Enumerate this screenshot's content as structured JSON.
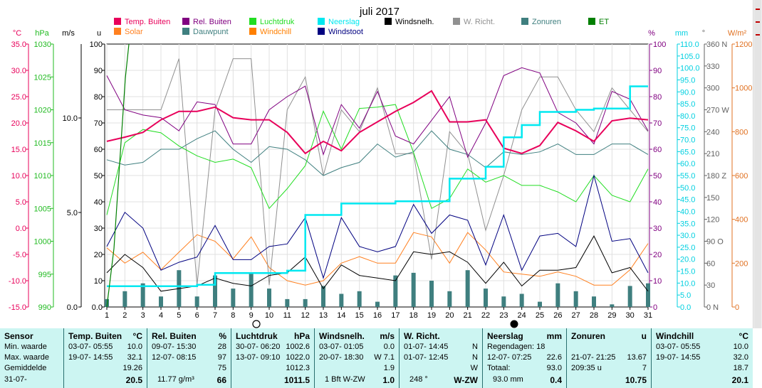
{
  "chart_data": {
    "type": "line",
    "title": "juli 2017",
    "x_ticks": [
      1,
      2,
      3,
      4,
      5,
      6,
      7,
      8,
      9,
      10,
      11,
      12,
      13,
      14,
      15,
      16,
      17,
      18,
      19,
      20,
      21,
      22,
      23,
      24,
      25,
      26,
      27,
      28,
      29,
      30,
      31
    ],
    "axes": {
      "temp": {
        "unit": "°C",
        "range": [
          -15,
          35
        ],
        "ticks": [
          "35.0",
          "30.0",
          "25.0",
          "20.0",
          "15.0",
          "10.0",
          "5.0",
          "0.0",
          "-5.0",
          "-10.0",
          "-15.0"
        ]
      },
      "hpa": {
        "unit": "hPa",
        "range": [
          990,
          1030
        ],
        "ticks": [
          "1030",
          "1025",
          "1020",
          "1015",
          "1010",
          "1005",
          "1000",
          "995",
          "990"
        ]
      },
      "ms": {
        "unit": "m/s",
        "ticks": [
          "10.0",
          "5.0",
          "0.0"
        ]
      },
      "u": {
        "unit": "u",
        "range": [
          0,
          100
        ],
        "ticks": [
          "100",
          "90",
          "80",
          "70",
          "60",
          "50",
          "40",
          "30",
          "20",
          "10",
          "0.0"
        ]
      },
      "pct": {
        "unit": "%",
        "range": [
          0,
          100
        ],
        "ticks": [
          "100",
          "90",
          "80",
          "70",
          "60",
          "50",
          "40",
          "30",
          "20",
          "10",
          "0"
        ]
      },
      "mm": {
        "unit": "mm",
        "range": [
          0,
          110
        ],
        "ticks": [
          "110.0",
          "105.0",
          "100.0",
          "95.0",
          "90.0",
          "85.0",
          "80.0",
          "75.0",
          "70.0",
          "65.0",
          "60.0",
          "55.0",
          "50.0",
          "45.0",
          "40.0",
          "35.0",
          "30.0",
          "25.0",
          "20.0",
          "15.0",
          "10.0",
          "5.0",
          "0.0"
        ]
      },
      "deg": {
        "unit": "°",
        "range": [
          0,
          360
        ],
        "ticks": [
          "360 N",
          "330",
          "300",
          "270 W",
          "240",
          "210",
          "180 Z",
          "150",
          "120",
          "90 O",
          "60",
          "30",
          "0 N"
        ]
      },
      "wm2": {
        "unit": "W/m²",
        "range": [
          0,
          1200
        ],
        "ticks": [
          "1200",
          "1000",
          "800",
          "600",
          "400",
          "200",
          "0"
        ]
      }
    },
    "legend": [
      {
        "name": "Temp. Buiten",
        "color": "#e8005a"
      },
      {
        "name": "Rel. Buiten",
        "color": "#800080"
      },
      {
        "name": "Luchtdruk",
        "color": "#22dd22"
      },
      {
        "name": "Neerslag",
        "color": "#00e8f0"
      },
      {
        "name": "Windsnelh.",
        "color": "#000000"
      },
      {
        "name": "W. Richt.",
        "color": "#909090"
      },
      {
        "name": "Zonuren",
        "color": "#3f7f7f"
      },
      {
        "name": "ET",
        "color": "#007f00"
      },
      {
        "name": "Solar",
        "color": "#ff8020"
      },
      {
        "name": "Dauwpunt",
        "color": "#3f7f7f"
      },
      {
        "name": "Windchill",
        "color": "#ff7f00"
      },
      {
        "name": "Windstoot",
        "color": "#000080"
      }
    ],
    "series": [
      {
        "name": "Temp. Buiten",
        "axis": "temp",
        "values": [
          16.5,
          17.3,
          18.2,
          20.6,
          22.2,
          22.2,
          23.0,
          21.0,
          20.6,
          20.6,
          18.2,
          14.2,
          16.5,
          14.7,
          18.2,
          20.2,
          22.2,
          23.9,
          26.1,
          20.2,
          20.2,
          20.6,
          15.2,
          14.2,
          15.7,
          20.1,
          18.5,
          16.5,
          20.4,
          20.9,
          20.6
        ]
      },
      {
        "name": "Rel. Buiten",
        "axis": "pct",
        "values": [
          88,
          75,
          73,
          72,
          67,
          78,
          77,
          62,
          62,
          75,
          80,
          84,
          58,
          77,
          68,
          82,
          65,
          62,
          71,
          80,
          57,
          70,
          88,
          91,
          89,
          74,
          70,
          62,
          82,
          79,
          67
        ]
      },
      {
        "name": "Luchtdruk",
        "axis": "hpa",
        "values": [
          1004,
          1015,
          1017,
          1016.5,
          1014.5,
          1013,
          1012,
          1012.5,
          1011.2,
          1005,
          1008,
          1011.5,
          1019.8,
          1014,
          1020.2,
          1020.4,
          1020.8,
          1013.5,
          1005,
          1006.5,
          1011,
          1009,
          1010,
          1008.5,
          1008.5,
          1007.5,
          1006,
          1010,
          1007,
          1006,
          1011
        ]
      },
      {
        "name": "Neerslag",
        "axis": "mm",
        "values": [
          8.7,
          8.7,
          8.7,
          8.7,
          8.7,
          9.3,
          14.2,
          14.2,
          14.2,
          14.2,
          15.2,
          38.5,
          38.5,
          43.3,
          43.3,
          43.3,
          44.2,
          44.2,
          44.2,
          53.7,
          53.7,
          58.7,
          71.0,
          76.1,
          81.6,
          81.6,
          82.5,
          83.0,
          83.0,
          92.3,
          92.3
        ]
      },
      {
        "name": "Windsnelh.",
        "axis": "u",
        "values": [
          13,
          20,
          15,
          6,
          7,
          8,
          11,
          9,
          8,
          12,
          13,
          19,
          7,
          16,
          12,
          11,
          10,
          21,
          20,
          21,
          17,
          9,
          17,
          8,
          14,
          14,
          15,
          27,
          13,
          15,
          6
        ]
      },
      {
        "name": "W. Richt.",
        "axis": "deg",
        "values": [
          270,
          270,
          270,
          270,
          340,
          30,
          270,
          340,
          340,
          30,
          270,
          315,
          180,
          270,
          240,
          300,
          210,
          210,
          65,
          240,
          210,
          105,
          180,
          270,
          315,
          315,
          270,
          240,
          300,
          270,
          240
        ]
      },
      {
        "name": "Dauwpunt",
        "axis": "pct",
        "values": [
          56,
          54,
          55,
          60,
          60,
          64,
          67,
          60,
          55,
          61,
          60,
          56,
          50,
          53,
          55,
          62,
          57,
          59,
          67,
          60,
          58,
          53,
          59,
          58,
          59,
          62,
          58,
          58,
          62,
          62,
          58
        ]
      },
      {
        "name": "Windchill",
        "axis": "temp",
        "values": [
          16.5,
          17.3,
          18.2,
          20.6,
          22.2,
          22.2,
          23.0,
          21.0,
          20.6,
          20.6,
          18.2,
          14.2,
          16.5,
          14.7,
          18.2,
          20.2,
          22.2,
          23.9,
          26.1,
          20.2,
          20.2,
          20.6,
          15.2,
          14.2,
          15.7,
          20.1,
          18.5,
          16.5,
          20.4,
          20.9,
          20.6
        ]
      },
      {
        "name": "Solar",
        "axis": "wm2",
        "values": [
          270,
          200,
          250,
          170,
          250,
          330,
          300,
          220,
          320,
          180,
          120,
          100,
          120,
          200,
          230,
          200,
          200,
          340,
          320,
          200,
          340,
          260,
          160,
          150,
          140,
          160,
          140,
          100,
          100,
          170,
          290
        ]
      },
      {
        "name": "Windstoot",
        "axis": "u",
        "values": [
          23,
          36,
          30,
          14,
          17,
          19,
          31,
          18,
          18,
          23,
          24,
          34,
          11,
          34,
          23,
          21,
          23,
          39,
          28,
          35,
          33,
          16,
          35,
          14,
          27,
          28,
          23,
          50,
          25,
          26,
          13
        ]
      },
      {
        "name": "Zonuren",
        "axis": "u",
        "type": "bar",
        "values": [
          3,
          6,
          9,
          4,
          14,
          4,
          12,
          7,
          13,
          7,
          3,
          3,
          8,
          5,
          6,
          2,
          12,
          13,
          10,
          6,
          14,
          7,
          4,
          5,
          2,
          9,
          6,
          4,
          1,
          8,
          9
        ]
      }
    ],
    "moon_markers": [
      "new",
      "full"
    ]
  },
  "stats": {
    "row_labels": [
      "Sensor",
      "Min. waarde",
      "Max. waarde",
      "Gemiddelde",
      "31-07-"
    ],
    "panels": [
      {
        "header": "Temp. Buiten",
        "unit": "°C",
        "min": [
          "03-07- 05:55",
          "10.0"
        ],
        "max": [
          "19-07- 14:55",
          "32.1"
        ],
        "avg": "19.26",
        "last": "20.5"
      },
      {
        "header": "Rel. Buiten",
        "unit": "%",
        "min": [
          "09-07- 15:30",
          "28"
        ],
        "max": [
          "12-07- 08:15",
          "97"
        ],
        "avg": "75",
        "last_extra": "11.77 g/m³",
        "last": "66"
      },
      {
        "header": "Luchtdruk",
        "unit": "hPa",
        "min": [
          "30-07- 06:20",
          "1002.6"
        ],
        "max": [
          "13-07- 09:10",
          "1022.0"
        ],
        "avg": "1012.3",
        "last": "1011.5"
      },
      {
        "header": "Windsnelh.",
        "unit": "m/s",
        "min": [
          "03-07- 01:05",
          "0.0"
        ],
        "max": [
          "20-07- 18:30",
          "W 7.1"
        ],
        "avg": "1.9",
        "last_extra": "1 Bft W-ZW",
        "last": "1.0"
      },
      {
        "header": "W. Richt.",
        "unit": "",
        "min": [
          "01-07- 14:45",
          "N"
        ],
        "max": [
          "01-07- 12:45",
          "N"
        ],
        "avg": "W",
        "last_extra": "248 °",
        "last": "W-ZW"
      },
      {
        "header": "Neerslag",
        "unit": "mm",
        "min": [
          "Regendagen: 18",
          ""
        ],
        "max": [
          "12-07- 07:25",
          "22.6"
        ],
        "avg_label": "Totaal:",
        "avg": "93.0",
        "last_extra": "93.0 mm",
        "last": "0.4"
      },
      {
        "header": "Zonuren",
        "unit": "u",
        "min": [
          "",
          ""
        ],
        "max": [
          "21-07- 21:25",
          "13.67"
        ],
        "avg_label": "209:35 u",
        "avg": "7",
        "last": "10.75"
      },
      {
        "header": "Windchill",
        "unit": "°C",
        "min": [
          "03-07- 05:55",
          "10.0"
        ],
        "max": [
          "19-07- 14:55",
          "32.0"
        ],
        "avg": "18.7",
        "last": "20.1"
      }
    ]
  }
}
